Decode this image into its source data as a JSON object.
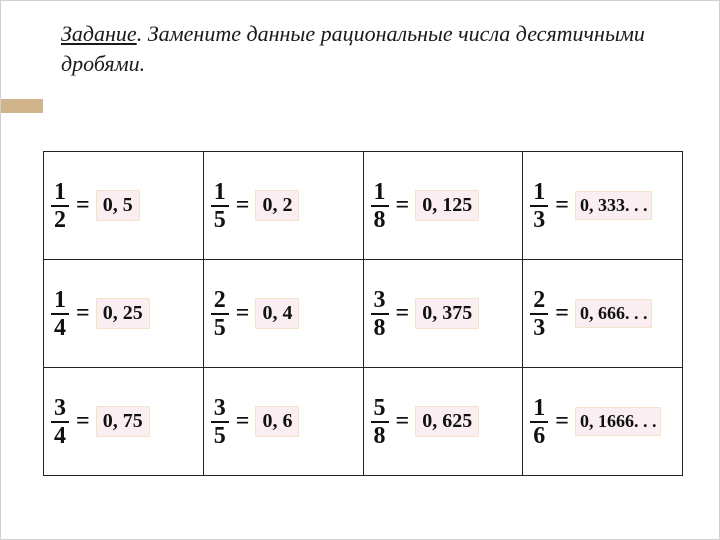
{
  "title_strong": "Задание",
  "title_rest": ". Замените данные рациональные числа десятичными дробями.",
  "accent_color": "#d2b48c",
  "answer_bg": "#fbeef2",
  "rows": [
    [
      {
        "num": "1",
        "den": "2",
        "ans": "0, 5"
      },
      {
        "num": "1",
        "den": "5",
        "ans": "0, 2"
      },
      {
        "num": "1",
        "den": "8",
        "ans": "0, 125"
      },
      {
        "num": "1",
        "den": "3",
        "ans": "0, 333. . ."
      }
    ],
    [
      {
        "num": "1",
        "den": "4",
        "ans": "0, 25"
      },
      {
        "num": "2",
        "den": "5",
        "ans": "0, 4"
      },
      {
        "num": "3",
        "den": "8",
        "ans": "0, 375"
      },
      {
        "num": "2",
        "den": "3",
        "ans": "0, 666. . ."
      }
    ],
    [
      {
        "num": "3",
        "den": "4",
        "ans": "0, 75"
      },
      {
        "num": "3",
        "den": "5",
        "ans": "0, 6"
      },
      {
        "num": "5",
        "den": "8",
        "ans": "0, 625"
      },
      {
        "num": "1",
        "den": "6",
        "ans": "0, 1666. . ."
      }
    ]
  ]
}
